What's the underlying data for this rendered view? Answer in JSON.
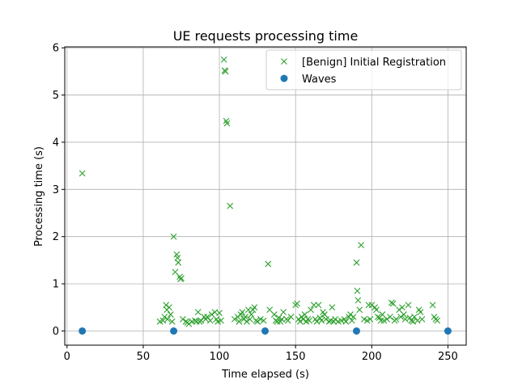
{
  "chart_data": {
    "type": "scatter",
    "title": "UE requests processing time",
    "xlabel": "Time elapsed (s)",
    "ylabel": "Processing time (s)",
    "xlim": [
      -1.5,
      262
    ],
    "ylim": [
      -0.3,
      6.02
    ],
    "xticks": [
      0,
      50,
      100,
      150,
      200,
      250
    ],
    "yticks": [
      0,
      1,
      2,
      3,
      4,
      5,
      6
    ],
    "grid": true,
    "legend_position": "top-right",
    "series": [
      {
        "name": "[Benign] Initial Registration",
        "marker": "x",
        "color": "#2ca02c",
        "points": [
          [
            10,
            3.34
          ],
          [
            61,
            0.2
          ],
          [
            63,
            0.22
          ],
          [
            64,
            0.3
          ],
          [
            65,
            0.55
          ],
          [
            65.5,
            0.45
          ],
          [
            66,
            0.25
          ],
          [
            67,
            0.5
          ],
          [
            68,
            0.35
          ],
          [
            69,
            0.2
          ],
          [
            70,
            2.0
          ],
          [
            71,
            1.25
          ],
          [
            72,
            1.62
          ],
          [
            72.5,
            1.55
          ],
          [
            73,
            1.45
          ],
          [
            74,
            1.15
          ],
          [
            74.5,
            1.1
          ],
          [
            75,
            1.12
          ],
          [
            76,
            0.25
          ],
          [
            78,
            0.2
          ],
          [
            79,
            0.18
          ],
          [
            80,
            0.15
          ],
          [
            82,
            0.2
          ],
          [
            84,
            0.22
          ],
          [
            85,
            0.2
          ],
          [
            86,
            0.4
          ],
          [
            87,
            0.2
          ],
          [
            88,
            0.22
          ],
          [
            90,
            0.3
          ],
          [
            91,
            0.25
          ],
          [
            92,
            0.3
          ],
          [
            94,
            0.22
          ],
          [
            95,
            0.35
          ],
          [
            97,
            0.4
          ],
          [
            98,
            0.25
          ],
          [
            99,
            0.2
          ],
          [
            100,
            0.38
          ],
          [
            101,
            0.22
          ],
          [
            103,
            5.75
          ],
          [
            103.5,
            5.52
          ],
          [
            104,
            5.5
          ],
          [
            104.5,
            4.45
          ],
          [
            105,
            4.4
          ],
          [
            107,
            2.65
          ],
          [
            110,
            0.25
          ],
          [
            112,
            0.3
          ],
          [
            113,
            0.2
          ],
          [
            114,
            0.35
          ],
          [
            115,
            0.4
          ],
          [
            116,
            0.25
          ],
          [
            117,
            0.3
          ],
          [
            118,
            0.2
          ],
          [
            119,
            0.45
          ],
          [
            120,
            0.25
          ],
          [
            121,
            0.35
          ],
          [
            122,
            0.45
          ],
          [
            123,
            0.5
          ],
          [
            124,
            0.22
          ],
          [
            125,
            0.2
          ],
          [
            127,
            0.25
          ],
          [
            129,
            0.22
          ],
          [
            132,
            1.42
          ],
          [
            133,
            0.45
          ],
          [
            136,
            0.35
          ],
          [
            137,
            0.22
          ],
          [
            138,
            0.2
          ],
          [
            139,
            0.28
          ],
          [
            140,
            0.2
          ],
          [
            141,
            0.25
          ],
          [
            142,
            0.4
          ],
          [
            144,
            0.25
          ],
          [
            145,
            0.22
          ],
          [
            147,
            0.3
          ],
          [
            150,
            0.55
          ],
          [
            151,
            0.58
          ],
          [
            152,
            0.25
          ],
          [
            153,
            0.2
          ],
          [
            154,
            0.3
          ],
          [
            155,
            0.25
          ],
          [
            156,
            0.35
          ],
          [
            157,
            0.2
          ],
          [
            158,
            0.25
          ],
          [
            159,
            0.22
          ],
          [
            160,
            0.45
          ],
          [
            162,
            0.55
          ],
          [
            163,
            0.25
          ],
          [
            164,
            0.2
          ],
          [
            165,
            0.55
          ],
          [
            166,
            0.28
          ],
          [
            167,
            0.22
          ],
          [
            168,
            0.4
          ],
          [
            169,
            0.35
          ],
          [
            170,
            0.25
          ],
          [
            172,
            0.2
          ],
          [
            173,
            0.22
          ],
          [
            174,
            0.5
          ],
          [
            175,
            0.2
          ],
          [
            176,
            0.25
          ],
          [
            178,
            0.2
          ],
          [
            180,
            0.22
          ],
          [
            182,
            0.25
          ],
          [
            183,
            0.2
          ],
          [
            185,
            0.3
          ],
          [
            186,
            0.35
          ],
          [
            187,
            0.22
          ],
          [
            188,
            0.3
          ],
          [
            190,
            1.45
          ],
          [
            190.5,
            0.85
          ],
          [
            191,
            0.65
          ],
          [
            192,
            0.45
          ],
          [
            193,
            1.82
          ],
          [
            195,
            0.25
          ],
          [
            197,
            0.22
          ],
          [
            198,
            0.55
          ],
          [
            199,
            0.25
          ],
          [
            200,
            0.55
          ],
          [
            202,
            0.5
          ],
          [
            203,
            0.45
          ],
          [
            204,
            0.3
          ],
          [
            205,
            0.28
          ],
          [
            206,
            0.22
          ],
          [
            207,
            0.35
          ],
          [
            208,
            0.22
          ],
          [
            210,
            0.25
          ],
          [
            212,
            0.3
          ],
          [
            213,
            0.6
          ],
          [
            214,
            0.58
          ],
          [
            215,
            0.22
          ],
          [
            216,
            0.25
          ],
          [
            218,
            0.45
          ],
          [
            219,
            0.3
          ],
          [
            220,
            0.5
          ],
          [
            221,
            0.35
          ],
          [
            222,
            0.25
          ],
          [
            224,
            0.55
          ],
          [
            225,
            0.28
          ],
          [
            226,
            0.22
          ],
          [
            227,
            0.2
          ],
          [
            228,
            0.3
          ],
          [
            230,
            0.22
          ],
          [
            231,
            0.45
          ],
          [
            232,
            0.4
          ],
          [
            233,
            0.25
          ],
          [
            240,
            0.55
          ],
          [
            241,
            0.3
          ],
          [
            242,
            0.25
          ],
          [
            243,
            0.22
          ]
        ]
      },
      {
        "name": "Waves",
        "marker": "o",
        "color": "#1f77b4",
        "points": [
          [
            10,
            0
          ],
          [
            70,
            0
          ],
          [
            130,
            0
          ],
          [
            190,
            0
          ],
          [
            250,
            0
          ]
        ]
      }
    ]
  }
}
